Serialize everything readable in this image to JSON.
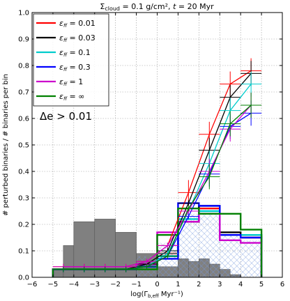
{
  "chart_data": {
    "type": "line",
    "title": "Σ_cloud = 0.1 g/cm², t = 20 Myr",
    "title_parts": {
      "sigma": "Σ",
      "sigma_sub": "cloud",
      "rest": " = 0.1 g/cm²,  ",
      "t": "t",
      "t_rest": " = 20 Myr"
    },
    "xlabel": "log(Γ_b,eff Myr⁻¹)",
    "xlabel_parts": {
      "pre": "log(Γ",
      "sub": "b,eff",
      "post": " Myr⁻¹)"
    },
    "ylabel": "# perturbed binaries / # binaries per bin",
    "xlim": [
      -6,
      6
    ],
    "ylim": [
      0,
      1.0
    ],
    "xticks": [
      "−6",
      "−5",
      "−4",
      "−3",
      "−2",
      "−1",
      "0",
      "1",
      "2",
      "3",
      "4",
      "5",
      "6"
    ],
    "yticks": [
      "0.0",
      "0.1",
      "0.2",
      "0.3",
      "0.4",
      "0.5",
      "0.6",
      "0.7",
      "0.8",
      "0.9",
      "1.0"
    ],
    "grid": true,
    "legend_position": "top-left",
    "annotation": "Δe > 0.01",
    "histogram_grey": {
      "bin_edges": [
        -5,
        -4.5,
        -4,
        -3,
        -2,
        -1,
        0,
        1,
        1.5,
        2,
        2.5,
        3,
        3.5,
        4,
        4.5
      ],
      "values": [
        0.03,
        0.12,
        0.21,
        0.22,
        0.17,
        0.09,
        0.04,
        0.07,
        0.06,
        0.07,
        0.05,
        0.03,
        0.01,
        0.0
      ]
    },
    "histogram_hatched": {
      "bin_edges": [
        -1,
        0,
        1,
        2,
        3,
        4,
        5
      ],
      "values": [
        0.08,
        0.13,
        0.24,
        0.24,
        0.16,
        0.14
      ]
    },
    "step_bin_edges": [
      -5,
      -4,
      -3,
      -2,
      -1,
      0,
      1,
      2,
      3,
      4,
      5
    ],
    "line_x": [
      -4.5,
      -3.5,
      -2.5,
      -1.5,
      -0.5,
      0.5,
      1.5,
      2.5,
      3.5,
      4.5
    ],
    "series": [
      {
        "name": "ε_ff = 0.01",
        "label_parts": [
          "ε",
          "ff",
          "= 0.01"
        ],
        "color": "#ff0000",
        "line": [
          0.04,
          0.04,
          0.04,
          0.04,
          0.06,
          0.12,
          0.32,
          0.54,
          0.73,
          0.78
        ],
        "step": [
          0.03,
          0.03,
          0.03,
          0.03,
          0.04,
          0.09,
          0.21,
          0.26,
          0.16,
          0.15
        ]
      },
      {
        "name": "ε_ff = 0.03",
        "label_parts": [
          "ε",
          "ff",
          "= 0.03"
        ],
        "color": "#000000",
        "line": [
          0.03,
          0.03,
          0.03,
          0.03,
          0.05,
          0.1,
          0.28,
          0.48,
          0.68,
          0.77
        ],
        "step": [
          0.03,
          0.03,
          0.03,
          0.03,
          0.04,
          0.08,
          0.21,
          0.27,
          0.17,
          0.16
        ]
      },
      {
        "name": "ε_ff = 0.1",
        "label_parts": [
          "ε",
          "ff",
          "= 0.1"
        ],
        "color": "#00cccc",
        "line": [
          0.03,
          0.03,
          0.03,
          0.03,
          0.04,
          0.09,
          0.25,
          0.43,
          0.63,
          0.73
        ],
        "step": [
          0.03,
          0.03,
          0.03,
          0.03,
          0.04,
          0.08,
          0.22,
          0.25,
          0.16,
          0.16
        ]
      },
      {
        "name": "ε_ff = 0.3",
        "label_parts": [
          "ε",
          "ff",
          "= 0.3"
        ],
        "color": "#0000ff",
        "line": [
          0.03,
          0.03,
          0.03,
          0.03,
          0.04,
          0.08,
          0.23,
          0.39,
          0.57,
          0.62
        ],
        "step": [
          0.03,
          0.03,
          0.03,
          0.03,
          0.04,
          0.07,
          0.28,
          0.27,
          0.16,
          0.15
        ]
      },
      {
        "name": "ε_ff = 1",
        "label_parts": [
          "ε",
          "ff",
          "= 1"
        ],
        "color": "#cc00cc",
        "line": [
          0.04,
          0.04,
          0.04,
          0.04,
          0.06,
          0.12,
          0.25,
          0.4,
          0.56,
          0.65
        ],
        "step": [
          0.03,
          0.03,
          0.03,
          0.03,
          0.05,
          0.17,
          0.21,
          0.24,
          0.14,
          0.13
        ]
      },
      {
        "name": "ε_ff = ∞",
        "label_parts": [
          "ε",
          "ff",
          "= ∞"
        ],
        "color": "#008000",
        "line": [
          0.03,
          0.03,
          0.03,
          0.03,
          0.04,
          0.08,
          0.26,
          0.38,
          0.58,
          0.65
        ],
        "step": [
          0.03,
          0.03,
          0.03,
          0.03,
          0.03,
          0.16,
          0.26,
          0.24,
          0.24,
          0.18
        ]
      }
    ]
  }
}
